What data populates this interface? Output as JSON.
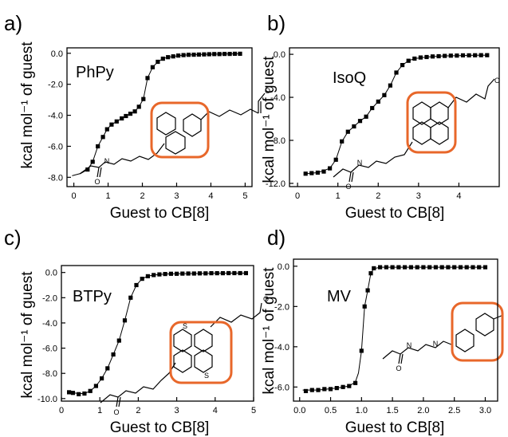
{
  "chart_data": [
    {
      "panel_label": "a)",
      "type": "scatter",
      "guest_label": "PhPy",
      "xlabel": "Guest to CB[8]",
      "ylabel": "kcal mol⁻¹ of guest",
      "xlim": [
        -0.2,
        5.2
      ],
      "ylim": [
        -8.6,
        0.35
      ],
      "xticks": [
        0,
        1,
        2,
        3,
        4,
        5
      ],
      "xtick_labels": [
        "0",
        "1",
        "2",
        "3",
        "4",
        "5"
      ],
      "yticks": [
        0,
        -2,
        -4,
        -6,
        -8
      ],
      "ytick_labels": [
        "0.0",
        "-2.0",
        "-4.0",
        "-6.0",
        "-8.0"
      ],
      "x": [
        0.4,
        0.55,
        0.7,
        0.85,
        0.97,
        1.1,
        1.25,
        1.4,
        1.52,
        1.65,
        1.78,
        1.9,
        2.03,
        2.15,
        2.3,
        2.45,
        2.6,
        2.75,
        2.9,
        3.05,
        3.2,
        3.35,
        3.5,
        3.65,
        3.8,
        3.95,
        4.1,
        4.25,
        4.4,
        4.55,
        4.7,
        4.85
      ],
      "y": [
        -7.5,
        -7.0,
        -6.0,
        -5.4,
        -4.9,
        -4.6,
        -4.4,
        -4.2,
        -4.05,
        -3.9,
        -3.75,
        -3.45,
        -2.95,
        -1.6,
        -0.9,
        -0.55,
        -0.35,
        -0.25,
        -0.2,
        -0.15,
        -0.12,
        -0.1,
        -0.09,
        -0.08,
        -0.07,
        -0.06,
        -0.05,
        -0.05,
        -0.04,
        -0.04,
        -0.03,
        -0.03
      ],
      "fit": {
        "x": [
          -0.05,
          0.2,
          0.4,
          0.55,
          0.7,
          0.85,
          0.97,
          1.1,
          1.25,
          1.4,
          1.52,
          1.65,
          1.78,
          1.9,
          2.03,
          2.15,
          2.3,
          2.45,
          2.6,
          2.75,
          2.9,
          3.2,
          3.6,
          4.0,
          4.5,
          4.85
        ],
        "y": [
          -7.9,
          -7.75,
          -7.5,
          -7.0,
          -6.0,
          -5.4,
          -4.9,
          -4.6,
          -4.4,
          -4.2,
          -4.05,
          -3.9,
          -3.75,
          -3.45,
          -2.95,
          -1.6,
          -0.9,
          -0.55,
          -0.35,
          -0.25,
          -0.2,
          -0.12,
          -0.08,
          -0.06,
          -0.04,
          -0.03
        ]
      },
      "has_structure_inset": true
    },
    {
      "panel_label": "b)",
      "type": "scatter",
      "guest_label": "IsoQ",
      "xlabel": "Guest to CB[8]",
      "ylabel": "kcal mol⁻¹ of guest",
      "xlim": [
        -0.2,
        5.0
      ],
      "ylim": [
        -12.3,
        0.6
      ],
      "xticks": [
        0,
        1,
        2,
        3,
        4
      ],
      "xtick_labels": [
        "0",
        "1",
        "2",
        "3",
        "4"
      ],
      "yticks": [
        0,
        -4,
        -8,
        -12
      ],
      "ytick_labels": [
        "0.0",
        "-4.0",
        "-8.0",
        "-12.0"
      ],
      "x": [
        0.2,
        0.35,
        0.5,
        0.65,
        0.8,
        0.95,
        1.1,
        1.25,
        1.4,
        1.55,
        1.7,
        1.85,
        2.0,
        2.15,
        2.3,
        2.45,
        2.6,
        2.75,
        2.9,
        3.05,
        3.2,
        3.35,
        3.5,
        3.65,
        3.8,
        3.95,
        4.1,
        4.25,
        4.4,
        4.55,
        4.7
      ],
      "y": [
        -11.1,
        -11.05,
        -11.0,
        -10.9,
        -10.6,
        -9.8,
        -8.1,
        -7.2,
        -6.7,
        -6.2,
        -5.8,
        -5.0,
        -4.4,
        -3.8,
        -2.9,
        -1.7,
        -1.0,
        -0.6,
        -0.4,
        -0.3,
        -0.25,
        -0.2,
        -0.18,
        -0.15,
        -0.13,
        -0.12,
        -0.1,
        -0.1,
        -0.09,
        -0.08,
        -0.08
      ],
      "fit": {
        "x": [
          0.2,
          0.5,
          0.8,
          0.95,
          1.1,
          1.25,
          1.4,
          1.55,
          1.7,
          1.85,
          2.0,
          2.15,
          2.3,
          2.45,
          2.6,
          2.75,
          2.9,
          3.2,
          3.6,
          4.0,
          4.4,
          4.7
        ],
        "y": [
          -11.1,
          -11.0,
          -10.6,
          -9.8,
          -8.1,
          -7.2,
          -6.7,
          -6.2,
          -5.8,
          -5.0,
          -4.4,
          -3.8,
          -2.9,
          -1.7,
          -1.0,
          -0.6,
          -0.4,
          -0.25,
          -0.15,
          -0.12,
          -0.09,
          -0.08
        ]
      },
      "has_structure_inset": true
    },
    {
      "panel_label": "c)",
      "type": "scatter",
      "guest_label": "BTPy",
      "xlabel": "Guest to CB[8]",
      "ylabel": "kcal mol⁻¹ of guest",
      "xlim": [
        0,
        5.0
      ],
      "ylim": [
        -10.2,
        0.55
      ],
      "xticks": [
        0,
        1,
        2,
        3,
        4,
        5
      ],
      "xtick_labels": [
        "0",
        "1",
        "2",
        "3",
        "4",
        "5"
      ],
      "yticks": [
        0,
        -2,
        -4,
        -6,
        -8,
        -10
      ],
      "ytick_labels": [
        "0.0",
        "-2.0",
        "-4.0",
        "-6.0",
        "-8.0",
        "-10.0"
      ],
      "x": [
        0.2,
        0.3,
        0.45,
        0.6,
        0.75,
        0.9,
        1.05,
        1.2,
        1.35,
        1.5,
        1.65,
        1.8,
        1.95,
        2.1,
        2.25,
        2.4,
        2.55,
        2.7,
        2.85,
        3.0,
        3.15,
        3.3,
        3.45,
        3.6,
        3.75,
        3.9,
        4.05,
        4.2,
        4.35,
        4.5,
        4.65,
        4.8
      ],
      "y": [
        -9.5,
        -9.55,
        -9.65,
        -9.6,
        -9.4,
        -9.0,
        -8.4,
        -7.6,
        -6.5,
        -5.4,
        -3.8,
        -2.0,
        -1.0,
        -0.5,
        -0.3,
        -0.2,
        -0.15,
        -0.12,
        -0.1,
        -0.1,
        -0.09,
        -0.08,
        -0.08,
        -0.07,
        -0.07,
        -0.06,
        -0.06,
        -0.06,
        -0.05,
        -0.05,
        -0.05,
        -0.05
      ],
      "fit": {
        "x": [
          0.2,
          0.45,
          0.6,
          0.75,
          0.9,
          1.05,
          1.2,
          1.35,
          1.5,
          1.65,
          1.8,
          1.95,
          2.1,
          2.25,
          2.4,
          2.7,
          3.0,
          3.5,
          4.0,
          4.5,
          4.85
        ],
        "y": [
          -9.5,
          -9.6,
          -9.6,
          -9.4,
          -9.0,
          -8.4,
          -7.6,
          -6.5,
          -5.4,
          -3.8,
          -2.0,
          -1.0,
          -0.5,
          -0.3,
          -0.2,
          -0.12,
          -0.1,
          -0.08,
          -0.06,
          -0.05,
          -0.05
        ]
      },
      "has_structure_inset": true
    },
    {
      "panel_label": "d)",
      "type": "scatter",
      "guest_label": "MV",
      "xlabel": "Guest to CB[8]",
      "ylabel": "kcal mol⁻¹ of guest",
      "xlim": [
        -0.1,
        3.2
      ],
      "ylim": [
        -6.7,
        0.35
      ],
      "xticks": [
        0,
        0.5,
        1.0,
        1.5,
        2.0,
        2.5,
        3.0
      ],
      "xtick_labels": [
        "0.0",
        "0.5",
        "1.0",
        "1.5",
        "2.0",
        "2.5",
        "3.0"
      ],
      "yticks": [
        0,
        -2,
        -4,
        -6
      ],
      "ytick_labels": [
        "0.0",
        "-2.0",
        "-4.0",
        "-6.0"
      ],
      "x": [
        0.1,
        0.2,
        0.3,
        0.4,
        0.5,
        0.6,
        0.7,
        0.8,
        0.9,
        1.0,
        1.05,
        1.1,
        1.15,
        1.2,
        1.3,
        1.4,
        1.5,
        1.6,
        1.7,
        1.8,
        1.9,
        2.0,
        2.1,
        2.2,
        2.3,
        2.4,
        2.5,
        2.6,
        2.7,
        2.8,
        2.9,
        3.0
      ],
      "y": [
        -6.2,
        -6.15,
        -6.15,
        -6.1,
        -6.1,
        -6.05,
        -6.0,
        -5.95,
        -5.8,
        -4.2,
        -2.0,
        -1.2,
        -0.35,
        -0.1,
        -0.05,
        -0.05,
        -0.05,
        -0.05,
        -0.05,
        -0.05,
        -0.05,
        -0.05,
        -0.05,
        -0.05,
        -0.05,
        -0.05,
        -0.05,
        -0.05,
        -0.05,
        -0.05,
        -0.05,
        -0.05
      ],
      "fit": {
        "x": [
          0.05,
          0.3,
          0.6,
          0.8,
          0.9,
          0.95,
          1.0,
          1.05,
          1.1,
          1.15,
          1.2,
          1.3,
          1.6,
          2.0,
          2.5,
          3.0
        ],
        "y": [
          -6.15,
          -6.15,
          -6.05,
          -5.95,
          -5.75,
          -5.3,
          -4.2,
          -2.0,
          -1.2,
          -0.35,
          -0.12,
          -0.05,
          -0.05,
          -0.05,
          -0.05,
          -0.05
        ]
      },
      "has_structure_inset": true
    }
  ]
}
